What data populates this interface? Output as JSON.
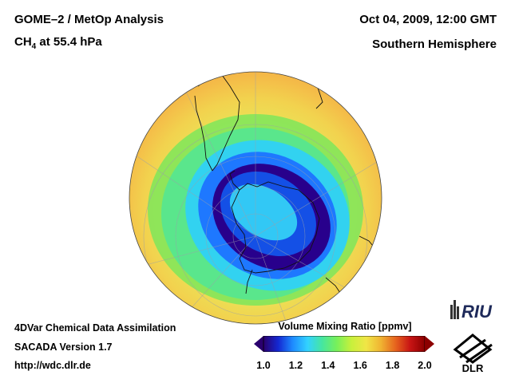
{
  "header": {
    "title_left": "GOME–2 / MetOp Analysis",
    "species_prefix": "CH",
    "species_sub": "4",
    "species_suffix": " at 55.4 hPa",
    "date": "Oct 04, 2009, 12:00 GMT",
    "region": "Southern Hemisphere"
  },
  "footer": {
    "line1": "4DVar Chemical Data Assimilation",
    "line2": "SACADA Version 1.7",
    "line3": "http://wdc.dlr.de"
  },
  "colorbar": {
    "title": "Volume Mixing Ratio [ppmv]",
    "ticks": [
      "1.0",
      "1.2",
      "1.4",
      "1.6",
      "1.8",
      "2.0"
    ],
    "min": 1.0,
    "max": 2.0,
    "colors": [
      "#2a006e",
      "#1428d2",
      "#1e8cff",
      "#32d2ff",
      "#46e6a0",
      "#78f05a",
      "#c8f03c",
      "#f0e646",
      "#f0b432",
      "#e6641e",
      "#c81414",
      "#8c0000"
    ]
  },
  "logos": {
    "riu": "RIU",
    "dlr": "DLR"
  },
  "map": {
    "projection": "orthographic",
    "center": "South Pole",
    "background_color": "#f0d85a",
    "outer_color": "#f5b446"
  }
}
